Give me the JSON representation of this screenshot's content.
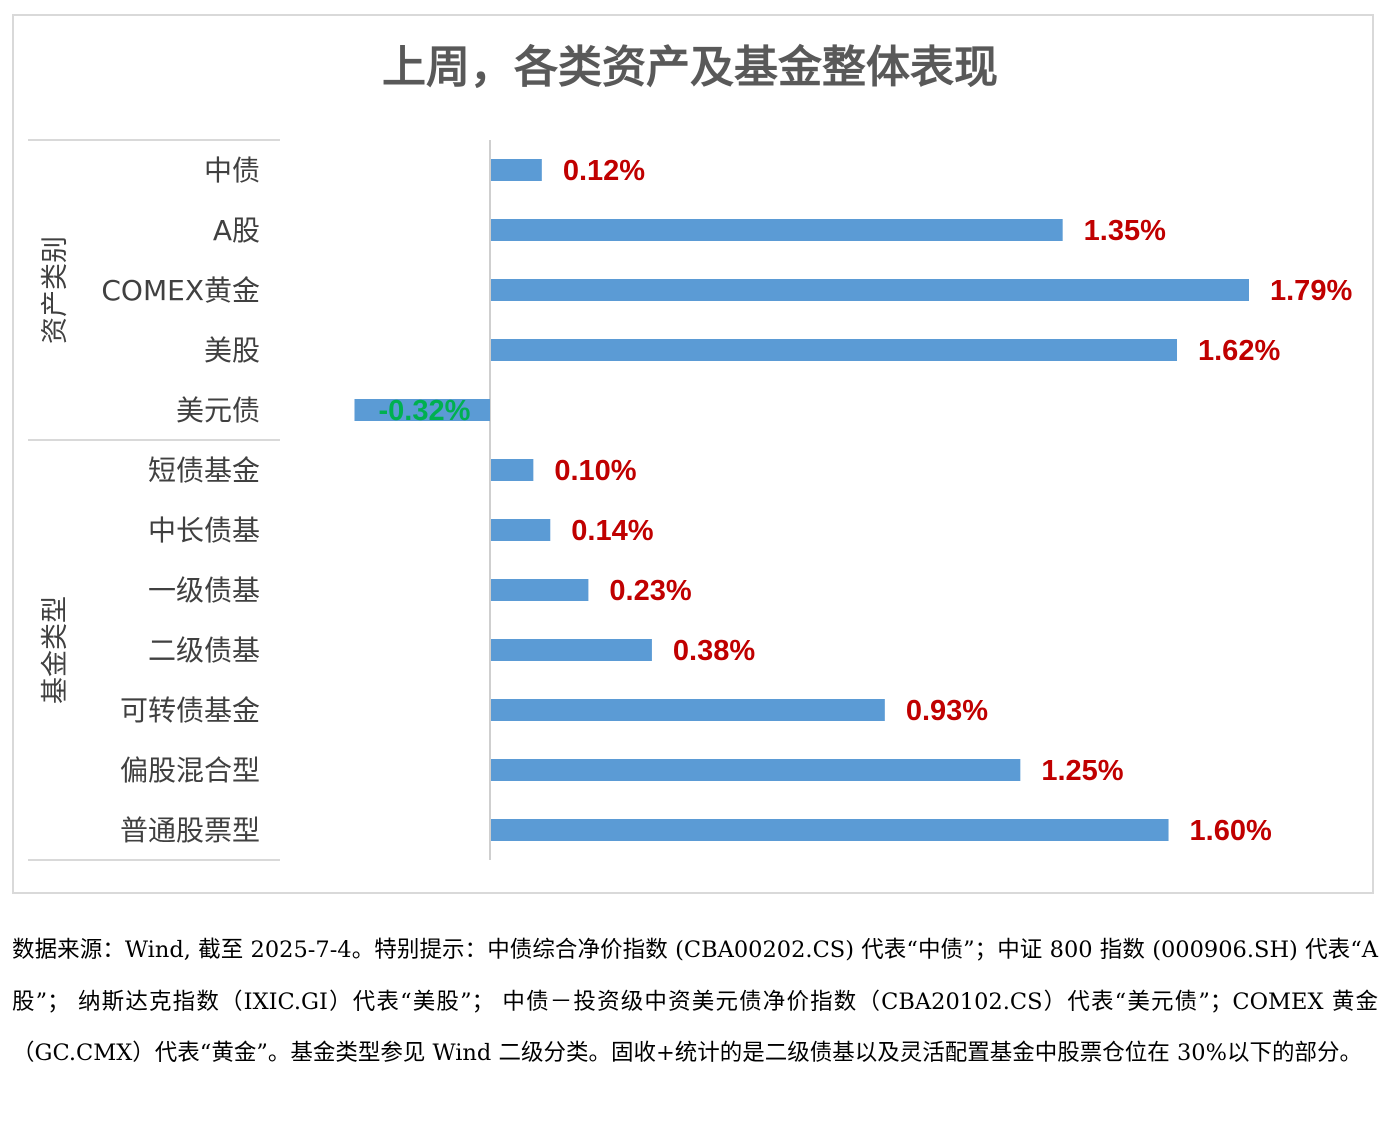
{
  "chart_data": {
    "type": "bar",
    "orientation": "horizontal",
    "title": "上周，各类资产及基金整体表现",
    "groups": [
      {
        "name": "资产类别",
        "categories": [
          "中债",
          "A股",
          "COMEX黄金",
          "美股",
          "美元债"
        ]
      },
      {
        "name": "基金类型",
        "categories": [
          "短债基金",
          "中长债基",
          "一级债基",
          "二级债基",
          "可转债基金",
          "偏股混合型",
          "普通股票型"
        ]
      }
    ],
    "categories": [
      "中债",
      "A股",
      "COMEX黄金",
      "美股",
      "美元债",
      "短债基金",
      "中长债基",
      "一级债基",
      "二级债基",
      "可转债基金",
      "偏股混合型",
      "普通股票型"
    ],
    "values": [
      0.12,
      1.35,
      1.79,
      1.62,
      -0.32,
      0.1,
      0.14,
      0.23,
      0.38,
      0.93,
      1.25,
      1.6
    ],
    "value_labels": [
      "0.12%",
      "1.35%",
      "1.79%",
      "1.62%",
      "-0.32%",
      "0.10%",
      "0.14%",
      "0.23%",
      "0.38%",
      "0.93%",
      "1.25%",
      "1.60%"
    ],
    "unit": "%",
    "xlim": [
      -0.32,
      1.79
    ],
    "grid": false,
    "legend": "none"
  },
  "colors": {
    "bar": "#5b9bd5",
    "positive_label": "#c00000",
    "negative_label": "#00b050",
    "text": "#404040",
    "axis": "#bfbfbf"
  },
  "footnote": "数据来源：Wind, 截至 2025-7-4。特别提示：中债综合净价指数 (CBA00202.CS) 代表“中债”；中证 800 指数 (000906.SH) 代表“A 股”； 纳斯达克指数（IXIC.GI）代表“美股”； 中债－投资级中资美元债净价指数（CBA20102.CS）代表“美元债”；COMEX 黄金（GC.CMX）代表“黄金”。基金类型参见 Wind 二级分类。固收+统计的是二级债基以及灵活配置基金中股票仓位在 30%以下的部分。"
}
